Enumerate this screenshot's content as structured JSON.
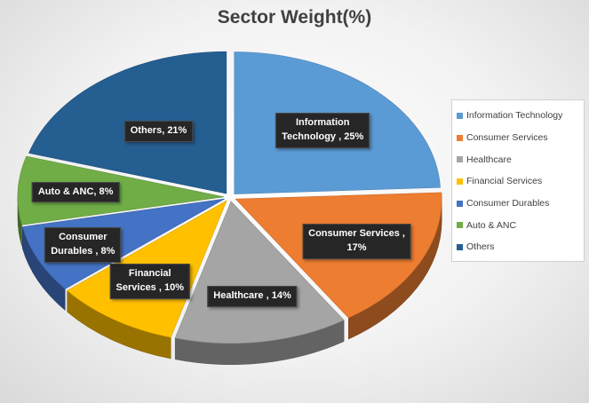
{
  "chart_data": {
    "type": "pie",
    "title": "Sector Weight(%)",
    "categories": [
      "Information Technology",
      "Consumer Services",
      "Healthcare",
      "Financial Services",
      "Consumer Durables",
      "Auto & ANC",
      "Others"
    ],
    "values": [
      25,
      17,
      14,
      10,
      8,
      8,
      21
    ],
    "colors": [
      "#5b9bd5",
      "#ed7d31",
      "#a5a5a5",
      "#ffc000",
      "#4472c4",
      "#70ad47",
      "#255e91"
    ],
    "data_labels": [
      [
        "Information",
        "Technology , 25%"
      ],
      [
        "Consumer Services ,",
        "17%"
      ],
      [
        "Healthcare , 14%"
      ],
      [
        "Financial",
        "Services , 10%"
      ],
      [
        "Consumer",
        "Durables , 8%"
      ],
      [
        "Auto & ANC, 8%"
      ],
      [
        "Others, 21%"
      ]
    ],
    "legend_position": "right",
    "style": "3d-exploded"
  }
}
